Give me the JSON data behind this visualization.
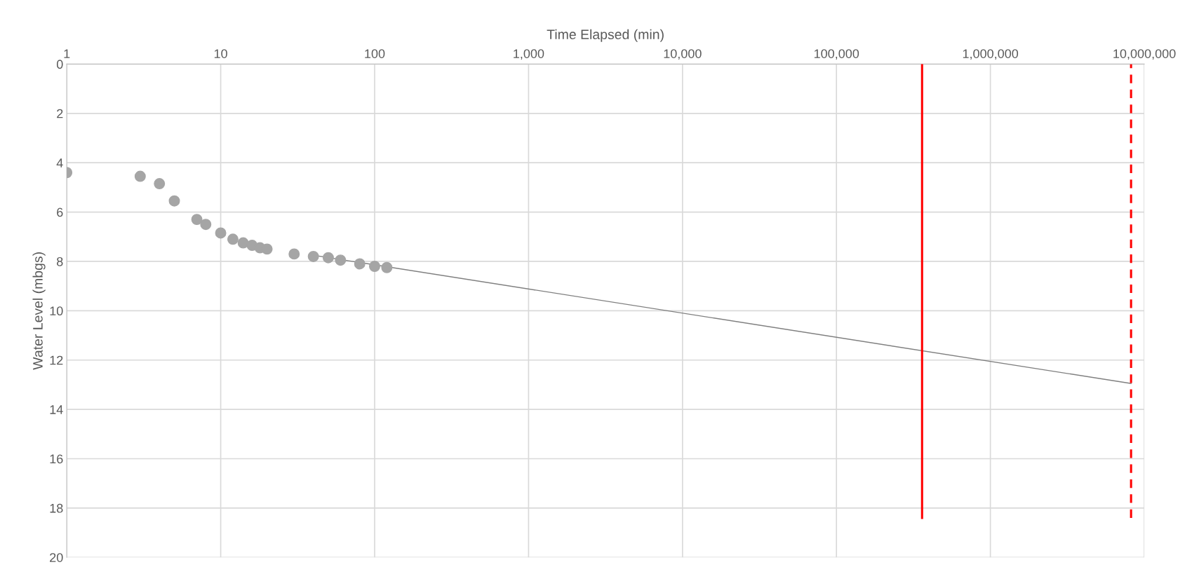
{
  "chart_data": {
    "type": "scatter",
    "xlabel": "Time Elapsed (min)",
    "ylabel": "Water Level (mbgs)",
    "log": "x",
    "xlim": [
      1,
      10000000
    ],
    "xticks": [
      1,
      10,
      100,
      {
        "value": 1000,
        "label": "1,000"
      },
      {
        "value": 10000,
        "label": "10,000"
      },
      {
        "value": 100000,
        "label": "100,000"
      },
      {
        "value": 1000000,
        "label": "1,000,000"
      },
      {
        "value": 10000000,
        "label": "10,000,000"
      }
    ],
    "ylim": [
      20,
      0
    ],
    "yticks": [
      0,
      2,
      4,
      6,
      8,
      10,
      12,
      14,
      16,
      18,
      20
    ],
    "grid": true,
    "marker": "circle",
    "series": [
      {
        "color": "#a5a5a5",
        "x": [
          1,
          3,
          4,
          5,
          7,
          8,
          10,
          12,
          14,
          16,
          18,
          20,
          30,
          40,
          50,
          60,
          80,
          100,
          120
        ],
        "values": [
          4.4,
          4.55,
          4.85,
          5.55,
          6.3,
          6.5,
          6.85,
          7.1,
          7.25,
          7.35,
          7.45,
          7.5,
          7.7,
          7.8,
          7.85,
          7.95,
          8.1,
          8.2,
          8.25
        ]
      },
      {
        "type": "line",
        "color": "#7f7f7f",
        "marker": "none",
        "x": [
          40,
          8200000
        ],
        "values": [
          7.75,
          12.95
        ]
      }
    ],
    "ref_lines": [
      {
        "axis": "x",
        "value": 360000,
        "color": "#ff0000",
        "line_style": "solid"
      },
      {
        "axis": "x",
        "value": 8200000,
        "color": "#ff0000",
        "line_style": "dashed"
      }
    ]
  }
}
